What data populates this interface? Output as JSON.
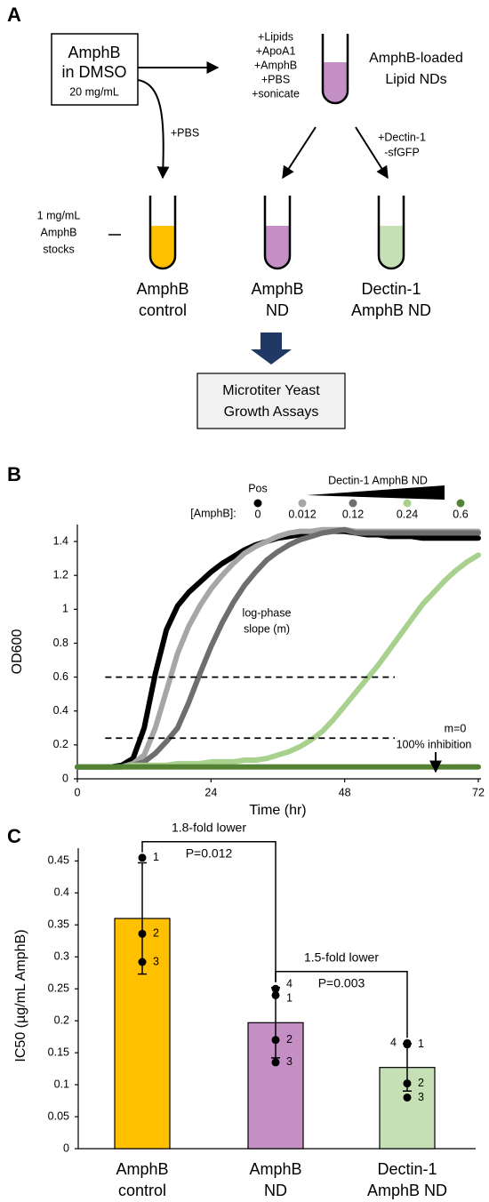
{
  "diagram": {
    "label": "A",
    "source_box": {
      "lines": [
        "AmphB",
        "in DMSO"
      ],
      "concentration": "20 mg/mL"
    },
    "additives": [
      "+Lipids",
      "+ApoA1",
      "+AmphB",
      "+PBS",
      "+sonicate"
    ],
    "product": [
      "AmphB-loaded",
      "Lipid NDs"
    ],
    "product_color": "#c38fc4",
    "pbs_step": "+PBS",
    "dectin_step": [
      "+Dectin-1",
      "-sfGFP"
    ],
    "stocks_note": [
      "1 mg/mL",
      "AmphB",
      "stocks"
    ],
    "tubes": [
      {
        "label": [
          "AmphB",
          "control"
        ],
        "color": "#ffc000"
      },
      {
        "label": [
          "AmphB",
          "ND"
        ],
        "color": "#c38fc4"
      },
      {
        "label": [
          "Dectin-1",
          "AmphB ND"
        ],
        "color": "#c5e0b4"
      }
    ],
    "assay_box": [
      "Microtiter Yeast",
      "Growth Assays"
    ]
  },
  "chart_data": [
    {
      "type": "line",
      "panel_label": "B",
      "x_label": "Time (hr)",
      "y_label": "OD600",
      "legend_title_pos": "Pos",
      "legend_title_gradient": "Dectin-1 AmphB ND",
      "legend_prefix": "[AmphB]:",
      "x": [
        0,
        2,
        4,
        6,
        8,
        10,
        12,
        14,
        16,
        18,
        20,
        22,
        24,
        26,
        28,
        30,
        32,
        34,
        36,
        38,
        40,
        42,
        44,
        46,
        48,
        50,
        52,
        54,
        56,
        58,
        60,
        62,
        64,
        66,
        68,
        70,
        72
      ],
      "xlim": [
        0,
        72
      ],
      "xticks": [
        0,
        24,
        48,
        72
      ],
      "ylim": [
        0,
        1.5
      ],
      "yticks": [
        0,
        0.2,
        0.4,
        0.6,
        0.8,
        1,
        1.2,
        1.4
      ],
      "series": [
        {
          "name": "0",
          "color": "#000000",
          "values": [
            0.07,
            0.07,
            0.07,
            0.07,
            0.08,
            0.12,
            0.3,
            0.62,
            0.88,
            1.02,
            1.1,
            1.16,
            1.22,
            1.27,
            1.31,
            1.35,
            1.38,
            1.4,
            1.42,
            1.43,
            1.44,
            1.45,
            1.46,
            1.46,
            1.46,
            1.45,
            1.44,
            1.44,
            1.43,
            1.43,
            1.43,
            1.42,
            1.42,
            1.42,
            1.42,
            1.42,
            1.42
          ]
        },
        {
          "name": "0.012",
          "color": "#a6a6a6",
          "values": [
            0.07,
            0.07,
            0.07,
            0.07,
            0.07,
            0.09,
            0.14,
            0.3,
            0.52,
            0.74,
            0.9,
            1.02,
            1.12,
            1.2,
            1.27,
            1.33,
            1.37,
            1.4,
            1.43,
            1.45,
            1.46,
            1.46,
            1.47,
            1.47,
            1.47,
            1.46,
            1.46,
            1.46,
            1.46,
            1.46,
            1.46,
            1.46,
            1.46,
            1.46,
            1.46,
            1.46,
            1.46
          ]
        },
        {
          "name": "0.12",
          "color": "#6e6e6e",
          "values": [
            0.07,
            0.07,
            0.07,
            0.07,
            0.07,
            0.08,
            0.1,
            0.15,
            0.22,
            0.3,
            0.45,
            0.62,
            0.78,
            0.92,
            1.04,
            1.14,
            1.22,
            1.29,
            1.34,
            1.38,
            1.41,
            1.43,
            1.45,
            1.46,
            1.47,
            1.45,
            1.45,
            1.45,
            1.45,
            1.45,
            1.45,
            1.45,
            1.45,
            1.45,
            1.45,
            1.45,
            1.45
          ]
        },
        {
          "name": "0.24",
          "color": "#a9d18e",
          "values": [
            0.07,
            0.07,
            0.07,
            0.07,
            0.07,
            0.08,
            0.08,
            0.08,
            0.08,
            0.09,
            0.09,
            0.09,
            0.1,
            0.1,
            0.1,
            0.11,
            0.11,
            0.12,
            0.14,
            0.16,
            0.19,
            0.23,
            0.28,
            0.35,
            0.43,
            0.51,
            0.59,
            0.67,
            0.76,
            0.85,
            0.94,
            1.03,
            1.1,
            1.17,
            1.23,
            1.28,
            1.32
          ]
        },
        {
          "name": "0.6",
          "color": "#548235",
          "values": [
            0.07,
            0.07,
            0.07,
            0.07,
            0.07,
            0.07,
            0.07,
            0.07,
            0.07,
            0.07,
            0.07,
            0.07,
            0.07,
            0.07,
            0.07,
            0.07,
            0.07,
            0.07,
            0.07,
            0.07,
            0.07,
            0.07,
            0.07,
            0.07,
            0.07,
            0.07,
            0.07,
            0.07,
            0.07,
            0.07,
            0.07,
            0.07,
            0.07,
            0.07,
            0.07,
            0.07,
            0.07
          ]
        }
      ],
      "reference_lines": [
        {
          "y": 0.6,
          "x": [
            5,
            57
          ]
        },
        {
          "y": 0.24,
          "x": [
            5,
            57
          ]
        }
      ],
      "annotations": {
        "slope": [
          "log-phase",
          "slope (m)"
        ],
        "inhibition": [
          "m=0",
          "100% inhibition"
        ]
      }
    },
    {
      "type": "bar",
      "panel_label": "C",
      "y_label": "IC50 (µg/mL AmphB)",
      "categories": [
        [
          "AmphB",
          "control"
        ],
        [
          "AmphB",
          "ND"
        ],
        [
          "Dectin-1",
          "AmphB ND"
        ]
      ],
      "values": [
        0.36,
        0.197,
        0.127
      ],
      "errors": [
        0.087,
        0.055,
        0.037
      ],
      "colors": [
        "#ffc000",
        "#c38fc4",
        "#c5e0b4"
      ],
      "ylim": [
        0,
        0.47
      ],
      "yticks": [
        0,
        0.05,
        0.1,
        0.15,
        0.2,
        0.25,
        0.3,
        0.35,
        0.4,
        0.45
      ],
      "points": [
        {
          "values": [
            0.455,
            0.336,
            0.292
          ],
          "labels": [
            "1",
            "2",
            "3"
          ]
        },
        {
          "values": [
            0.25,
            0.24,
            0.17,
            0.135
          ],
          "labels": [
            "4",
            "1",
            "2",
            "3"
          ]
        },
        {
          "values": [
            0.165,
            0.163,
            0.102,
            0.08
          ],
          "labels": [
            "4",
            "1",
            "2",
            "3"
          ]
        }
      ],
      "comparisons": [
        {
          "from": 0,
          "to": 1,
          "label": "1.8-fold lower",
          "p": "P=0.012"
        },
        {
          "from": 1,
          "to": 2,
          "label": "1.5-fold lower",
          "p": "P=0.003"
        }
      ]
    }
  ]
}
